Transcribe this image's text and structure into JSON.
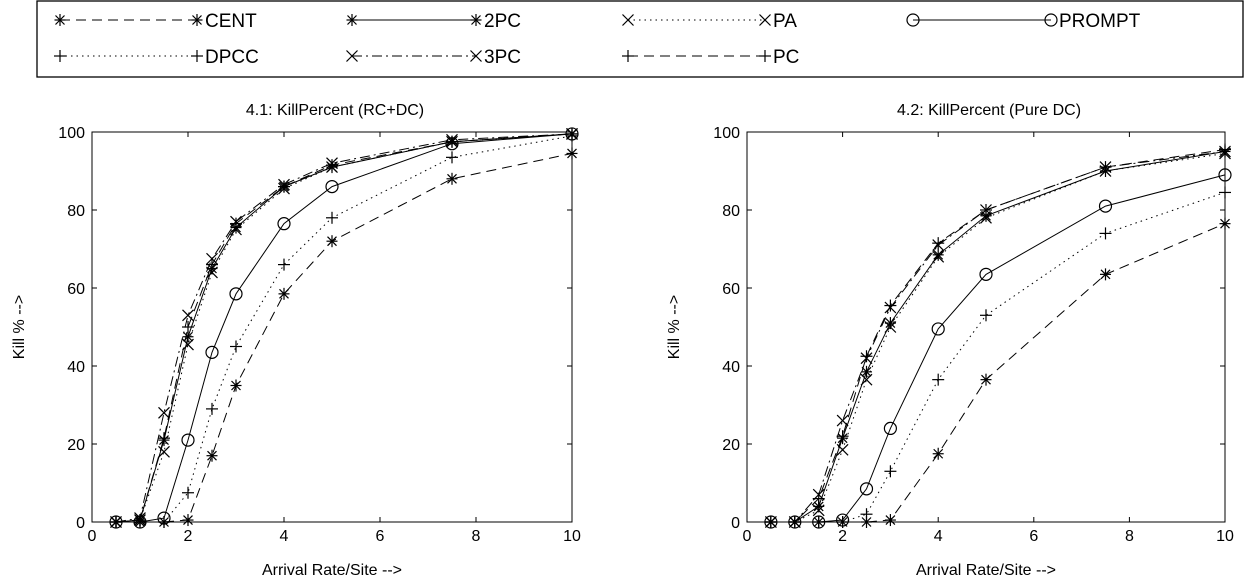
{
  "legend": {
    "items": [
      {
        "label": "CENT",
        "marker": "star",
        "dash": "dashed"
      },
      {
        "label": "2PC",
        "marker": "star",
        "dash": "solid"
      },
      {
        "label": "PA",
        "marker": "x",
        "dash": "dotted"
      },
      {
        "label": "PROMPT",
        "marker": "circle",
        "dash": "solid"
      },
      {
        "label": "DPCC",
        "marker": "plus",
        "dash": "dotted"
      },
      {
        "label": "3PC",
        "marker": "x",
        "dash": "dashdot"
      },
      {
        "label": "PC",
        "marker": "plus",
        "dash": "dashed"
      }
    ]
  },
  "chart_data": [
    {
      "type": "line",
      "title": "4.1: KillPercent (RC+DC)",
      "xlabel": "Arrival Rate/Site -->",
      "ylabel": "Kill % -->",
      "xlim": [
        0,
        10
      ],
      "ylim": [
        0,
        100
      ],
      "xticks": [
        "0",
        "2",
        "4",
        "6",
        "8",
        "10"
      ],
      "yticks": [
        "0",
        "20",
        "40",
        "60",
        "80",
        "100"
      ],
      "grid": false,
      "x": [
        0.5,
        1,
        1.5,
        2,
        2.5,
        3,
        4,
        5,
        7.5,
        10
      ],
      "series": [
        {
          "name": "CENT",
          "values": [
            0,
            0,
            0,
            0.5,
            17,
            35,
            58.5,
            72,
            88,
            94.5
          ]
        },
        {
          "name": "2PC",
          "values": [
            0,
            0.5,
            21,
            47.5,
            65,
            75.5,
            86,
            91,
            97.5,
            99.5
          ]
        },
        {
          "name": "PA",
          "values": [
            0,
            0.5,
            18,
            45.5,
            64,
            75,
            85.5,
            91,
            97.5,
            99.5
          ]
        },
        {
          "name": "PROMPT",
          "values": [
            0,
            0,
            1,
            21,
            43.5,
            58.5,
            76.5,
            86,
            97,
            99.5
          ]
        },
        {
          "name": "DPCC",
          "values": [
            0,
            0,
            0,
            7.5,
            29,
            45,
            66,
            78,
            93.5,
            99
          ]
        },
        {
          "name": "3PC",
          "values": [
            0,
            1,
            28,
            53,
            67.5,
            77,
            86.5,
            92,
            98,
            99.5
          ]
        },
        {
          "name": "PC",
          "values": [
            0,
            0.5,
            21.5,
            50,
            66,
            76.5,
            86,
            91.5,
            97.5,
            99.5
          ]
        }
      ]
    },
    {
      "type": "line",
      "title": "4.2: KillPercent (Pure DC)",
      "xlabel": "Arrival Rate/Site -->",
      "ylabel": "Kill % -->",
      "xlim": [
        0,
        10
      ],
      "ylim": [
        0,
        100
      ],
      "xticks": [
        "0",
        "2",
        "4",
        "6",
        "8",
        "10"
      ],
      "yticks": [
        "0",
        "20",
        "40",
        "60",
        "80",
        "100"
      ],
      "grid": false,
      "x": [
        0.5,
        1,
        1.5,
        2,
        2.5,
        3,
        4,
        5,
        7.5,
        10
      ],
      "series": [
        {
          "name": "CENT",
          "values": [
            0,
            0,
            0,
            0,
            0,
            0.5,
            17.5,
            36.5,
            63.5,
            76.5
          ]
        },
        {
          "name": "2PC",
          "values": [
            0,
            0,
            4,
            21.5,
            38.5,
            51,
            68.5,
            78.5,
            90,
            95
          ]
        },
        {
          "name": "PA",
          "values": [
            0,
            0,
            3,
            18.5,
            36.5,
            50,
            68,
            78,
            90,
            94.5
          ]
        },
        {
          "name": "PROMPT",
          "values": [
            0,
            0,
            0,
            0.5,
            8.5,
            24,
            49.5,
            63.5,
            81,
            89
          ]
        },
        {
          "name": "DPCC",
          "values": [
            0,
            0,
            0,
            0,
            2,
            13,
            36.5,
            53,
            74,
            84.5
          ]
        },
        {
          "name": "3PC",
          "values": [
            0,
            0,
            7,
            26,
            42,
            55,
            71,
            80,
            91,
            95
          ]
        },
        {
          "name": "PC",
          "values": [
            0,
            0,
            6,
            22,
            42.5,
            55.5,
            71.5,
            80,
            91,
            95.5
          ]
        }
      ]
    }
  ]
}
